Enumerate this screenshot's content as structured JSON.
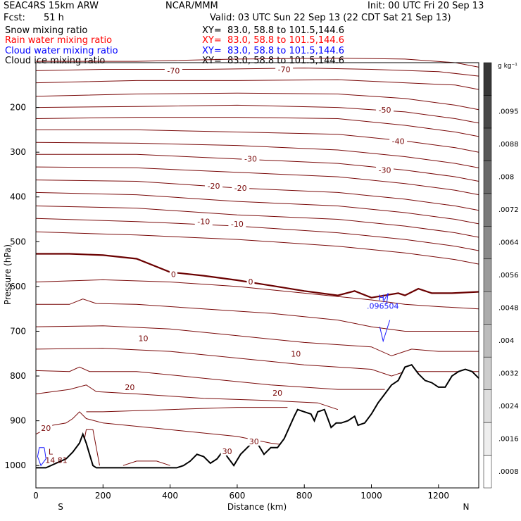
{
  "header": {
    "model": "SEAC4RS 15km ARW",
    "org": "NCAR/MMM",
    "init": "Init: 00 UTC Fri 20 Sep 13",
    "fcst_label": "Fcst:",
    "fcst_value": "51 h",
    "valid": "Valid: 03 UTC Sun 22 Sep 13 (22 CDT Sat 21 Sep 13)"
  },
  "fields": [
    {
      "name": "Snow mixing ratio",
      "xy": "XY=  83.0, 58.8 to 101.5,144.6",
      "color": "#000000"
    },
    {
      "name": "Rain water mixing ratio",
      "xy": "XY=  83.0, 58.8 to 101.5,144.6",
      "color": "#ff0000"
    },
    {
      "name": "Cloud water mixing ratio",
      "xy": "XY=  83.0, 58.8 to 101.5,144.6",
      "color": "#0000ff"
    },
    {
      "name": "Cloud ice mixing ratio",
      "xy": "XY=  83.0, 58.8 to 101.5,144.6",
      "color": "#000000"
    }
  ],
  "colors": {
    "temperature_contour": "#7a0a0a",
    "freezing_level": "#6a0000",
    "terrain": "#000000",
    "cloud_water": "#1a1aff"
  },
  "chart_data": {
    "type": "contour",
    "xlabel": "Distance (km)",
    "ylabel": "Pressure (hPa)",
    "xlim": [
      0,
      1320
    ],
    "ylim": [
      1050,
      100
    ],
    "x_ticks": [
      0,
      200,
      400,
      600,
      800,
      1000,
      1200
    ],
    "y_ticks": [
      200,
      300,
      400,
      500,
      600,
      700,
      800,
      900,
      1000
    ],
    "end_labels": {
      "left": "S",
      "right": "N"
    },
    "colorbar": {
      "unit": "g kg⁻¹",
      "tick_labels": [
        ".0008",
        ".0016",
        ".0024",
        ".0032",
        ".004",
        ".0048",
        ".0056",
        ".0064",
        ".0072",
        ".008",
        ".0088",
        ".0095"
      ]
    },
    "contour_labels": [
      {
        "text": "-70",
        "x": 410,
        "p": 118
      },
      {
        "text": "-70",
        "x": 740,
        "p": 115
      },
      {
        "text": "-50",
        "x": 1040,
        "p": 205
      },
      {
        "text": "-40",
        "x": 1080,
        "p": 275
      },
      {
        "text": "-30",
        "x": 640,
        "p": 315
      },
      {
        "text": "-30",
        "x": 1040,
        "p": 340
      },
      {
        "text": "-20",
        "x": 530,
        "p": 375
      },
      {
        "text": "-20",
        "x": 610,
        "p": 380
      },
      {
        "text": "-10",
        "x": 500,
        "p": 455
      },
      {
        "text": "-10",
        "x": 600,
        "p": 460
      },
      {
        "text": "0",
        "x": 410,
        "p": 573
      },
      {
        "text": "0",
        "x": 640,
        "p": 589
      },
      {
        "text": "10",
        "x": 320,
        "p": 716
      },
      {
        "text": "10",
        "x": 775,
        "p": 750
      },
      {
        "text": "20",
        "x": 280,
        "p": 825
      },
      {
        "text": "20",
        "x": 720,
        "p": 838
      },
      {
        "text": "20",
        "x": 30,
        "p": 916
      },
      {
        "text": "30",
        "x": 570,
        "p": 968
      },
      {
        "text": "30",
        "x": 650,
        "p": 946
      }
    ],
    "high": {
      "label": "H",
      "value": ".096504",
      "x": 1030,
      "p": 650
    },
    "low": {
      "label": "L",
      "value": "14.81",
      "x": 65,
      "p": 980
    },
    "terrain_surface_hPa": [
      [
        0,
        1005
      ],
      [
        30,
        1005
      ],
      [
        60,
        995
      ],
      [
        90,
        985
      ],
      [
        110,
        970
      ],
      [
        130,
        950
      ],
      [
        140,
        930
      ],
      [
        150,
        950
      ],
      [
        160,
        975
      ],
      [
        170,
        1000
      ],
      [
        180,
        1005
      ],
      [
        300,
        1005
      ],
      [
        420,
        1005
      ],
      [
        440,
        1000
      ],
      [
        460,
        990
      ],
      [
        480,
        975
      ],
      [
        500,
        980
      ],
      [
        520,
        995
      ],
      [
        540,
        985
      ],
      [
        560,
        965
      ],
      [
        570,
        980
      ],
      [
        590,
        1000
      ],
      [
        610,
        975
      ],
      [
        630,
        960
      ],
      [
        650,
        945
      ],
      [
        660,
        950
      ],
      [
        680,
        975
      ],
      [
        700,
        960
      ],
      [
        720,
        960
      ],
      [
        740,
        940
      ],
      [
        770,
        890
      ],
      [
        780,
        875
      ],
      [
        800,
        880
      ],
      [
        820,
        885
      ],
      [
        830,
        900
      ],
      [
        840,
        880
      ],
      [
        860,
        875
      ],
      [
        870,
        895
      ],
      [
        880,
        915
      ],
      [
        895,
        905
      ],
      [
        910,
        905
      ],
      [
        930,
        900
      ],
      [
        950,
        890
      ],
      [
        960,
        910
      ],
      [
        980,
        905
      ],
      [
        1000,
        885
      ],
      [
        1020,
        860
      ],
      [
        1040,
        840
      ],
      [
        1060,
        820
      ],
      [
        1080,
        810
      ],
      [
        1100,
        780
      ],
      [
        1120,
        775
      ],
      [
        1140,
        795
      ],
      [
        1160,
        810
      ],
      [
        1180,
        815
      ],
      [
        1200,
        825
      ],
      [
        1220,
        825
      ],
      [
        1240,
        800
      ],
      [
        1260,
        790
      ],
      [
        1280,
        785
      ],
      [
        1300,
        790
      ],
      [
        1320,
        805
      ]
    ],
    "freezing_level_hPa": [
      [
        0,
        527
      ],
      [
        100,
        527
      ],
      [
        200,
        530
      ],
      [
        300,
        538
      ],
      [
        400,
        568
      ],
      [
        500,
        576
      ],
      [
        600,
        586
      ],
      [
        700,
        598
      ],
      [
        800,
        610
      ],
      [
        900,
        620
      ],
      [
        950,
        610
      ],
      [
        1000,
        625
      ],
      [
        1040,
        620
      ],
      [
        1080,
        615
      ],
      [
        1100,
        620
      ],
      [
        1140,
        605
      ],
      [
        1180,
        615
      ],
      [
        1240,
        615
      ],
      [
        1320,
        612
      ]
    ],
    "temperature_isotherms_hPa": [
      [
        [
          0,
          97
        ],
        [
          300,
          97
        ],
        [
          600,
          92
        ],
        [
          900,
          90
        ],
        [
          1100,
          92
        ],
        [
          1250,
          100
        ],
        [
          1320,
          110
        ]
      ],
      [
        [
          0,
          118
        ],
        [
          200,
          115
        ],
        [
          500,
          115
        ],
        [
          800,
          112
        ],
        [
          1000,
          115
        ],
        [
          1200,
          120
        ],
        [
          1320,
          130
        ]
      ],
      [
        [
          0,
          145
        ],
        [
          300,
          140
        ],
        [
          600,
          140
        ],
        [
          900,
          138
        ],
        [
          1100,
          145
        ],
        [
          1250,
          150
        ],
        [
          1320,
          160
        ]
      ],
      [
        [
          0,
          175
        ],
        [
          300,
          170
        ],
        [
          600,
          168
        ],
        [
          900,
          170
        ],
        [
          1100,
          180
        ],
        [
          1250,
          195
        ],
        [
          1320,
          205
        ]
      ],
      [
        [
          0,
          200
        ],
        [
          300,
          198
        ],
        [
          600,
          195
        ],
        [
          900,
          200
        ],
        [
          1100,
          210
        ],
        [
          1250,
          225
        ],
        [
          1320,
          235
        ]
      ],
      [
        [
          0,
          225
        ],
        [
          300,
          222
        ],
        [
          600,
          222
        ],
        [
          900,
          225
        ],
        [
          1100,
          240
        ],
        [
          1250,
          255
        ],
        [
          1320,
          265
        ]
      ],
      [
        [
          0,
          250
        ],
        [
          300,
          250
        ],
        [
          600,
          255
        ],
        [
          900,
          260
        ],
        [
          1100,
          275
        ],
        [
          1250,
          290
        ],
        [
          1320,
          300
        ]
      ],
      [
        [
          0,
          278
        ],
        [
          300,
          280
        ],
        [
          600,
          285
        ],
        [
          900,
          295
        ],
        [
          1100,
          310
        ],
        [
          1250,
          325
        ],
        [
          1320,
          335
        ]
      ],
      [
        [
          0,
          305
        ],
        [
          300,
          305
        ],
        [
          600,
          315
        ],
        [
          900,
          325
        ],
        [
          1100,
          340
        ],
        [
          1250,
          355
        ],
        [
          1320,
          365
        ]
      ],
      [
        [
          0,
          333
        ],
        [
          300,
          335
        ],
        [
          600,
          345
        ],
        [
          900,
          355
        ],
        [
          1100,
          370
        ],
        [
          1250,
          385
        ],
        [
          1320,
          395
        ]
      ],
      [
        [
          0,
          362
        ],
        [
          300,
          365
        ],
        [
          600,
          380
        ],
        [
          900,
          390
        ],
        [
          1100,
          405
        ],
        [
          1250,
          420
        ],
        [
          1320,
          430
        ]
      ],
      [
        [
          0,
          390
        ],
        [
          300,
          395
        ],
        [
          600,
          410
        ],
        [
          900,
          420
        ],
        [
          1100,
          435
        ],
        [
          1250,
          450
        ],
        [
          1320,
          460
        ]
      ],
      [
        [
          0,
          420
        ],
        [
          300,
          425
        ],
        [
          600,
          440
        ],
        [
          900,
          450
        ],
        [
          1100,
          465
        ],
        [
          1250,
          480
        ],
        [
          1320,
          490
        ]
      ],
      [
        [
          0,
          448
        ],
        [
          300,
          455
        ],
        [
          600,
          465
        ],
        [
          900,
          480
        ],
        [
          1100,
          495
        ],
        [
          1250,
          510
        ],
        [
          1320,
          520
        ]
      ],
      [
        [
          0,
          478
        ],
        [
          300,
          485
        ],
        [
          600,
          495
        ],
        [
          900,
          510
        ],
        [
          1100,
          525
        ],
        [
          1250,
          540
        ],
        [
          1320,
          550
        ]
      ],
      [
        [
          0,
          590
        ],
        [
          200,
          585
        ],
        [
          400,
          590
        ],
        [
          600,
          600
        ],
        [
          800,
          615
        ],
        [
          1000,
          630
        ],
        [
          1100,
          640
        ],
        [
          1200,
          645
        ],
        [
          1320,
          650
        ]
      ],
      [
        [
          0,
          640
        ],
        [
          100,
          640
        ],
        [
          140,
          628
        ],
        [
          180,
          638
        ],
        [
          300,
          640
        ],
        [
          500,
          650
        ],
        [
          700,
          660
        ],
        [
          900,
          675
        ],
        [
          1000,
          690
        ],
        [
          1100,
          700
        ],
        [
          1320,
          700
        ]
      ],
      [
        [
          0,
          690
        ],
        [
          200,
          688
        ],
        [
          400,
          695
        ],
        [
          600,
          710
        ],
        [
          800,
          725
        ],
        [
          1000,
          735
        ],
        [
          1060,
          755
        ],
        [
          1120,
          740
        ],
        [
          1200,
          745
        ],
        [
          1320,
          745
        ]
      ],
      [
        [
          0,
          740
        ],
        [
          200,
          738
        ],
        [
          400,
          745
        ],
        [
          600,
          760
        ],
        [
          800,
          775
        ],
        [
          1000,
          785
        ],
        [
          1060,
          800
        ],
        [
          1100,
          790
        ],
        [
          1320,
          790
        ]
      ],
      [
        [
          0,
          788
        ],
        [
          100,
          790
        ],
        [
          130,
          780
        ],
        [
          160,
          790
        ],
        [
          300,
          790
        ],
        [
          500,
          805
        ],
        [
          700,
          820
        ],
        [
          900,
          830
        ],
        [
          1040,
          830
        ]
      ],
      [
        [
          0,
          840
        ],
        [
          100,
          830
        ],
        [
          150,
          820
        ],
        [
          180,
          835
        ],
        [
          300,
          840
        ],
        [
          500,
          850
        ],
        [
          700,
          855
        ],
        [
          840,
          860
        ],
        [
          900,
          875
        ]
      ],
      [
        [
          0,
          930
        ],
        [
          50,
          910
        ],
        [
          90,
          905
        ],
        [
          110,
          895
        ],
        [
          130,
          880
        ],
        [
          150,
          895
        ],
        [
          200,
          905
        ],
        [
          400,
          920
        ],
        [
          600,
          935
        ],
        [
          700,
          950
        ],
        [
          750,
          955
        ]
      ],
      [
        [
          150,
          880
        ],
        [
          200,
          880
        ],
        [
          400,
          875
        ],
        [
          600,
          870
        ],
        [
          750,
          870
        ]
      ],
      [
        [
          130,
          1000
        ],
        [
          150,
          920
        ],
        [
          170,
          920
        ],
        [
          190,
          1000
        ]
      ],
      [
        [
          260,
          1000
        ],
        [
          300,
          990
        ],
        [
          360,
          990
        ],
        [
          400,
          1000
        ]
      ]
    ],
    "cloud_water_outlines_hPa": [
      [
        [
          1055,
          675
        ],
        [
          1035,
          722
        ],
        [
          1025,
          690
        ]
      ],
      [
        [
          1035,
          635
        ],
        [
          1050,
          615
        ],
        [
          1045,
          640
        ]
      ],
      [
        [
          25,
          960
        ],
        [
          10,
          960
        ],
        [
          5,
          980
        ],
        [
          15,
          1000
        ],
        [
          30,
          985
        ],
        [
          25,
          960
        ]
      ]
    ]
  }
}
